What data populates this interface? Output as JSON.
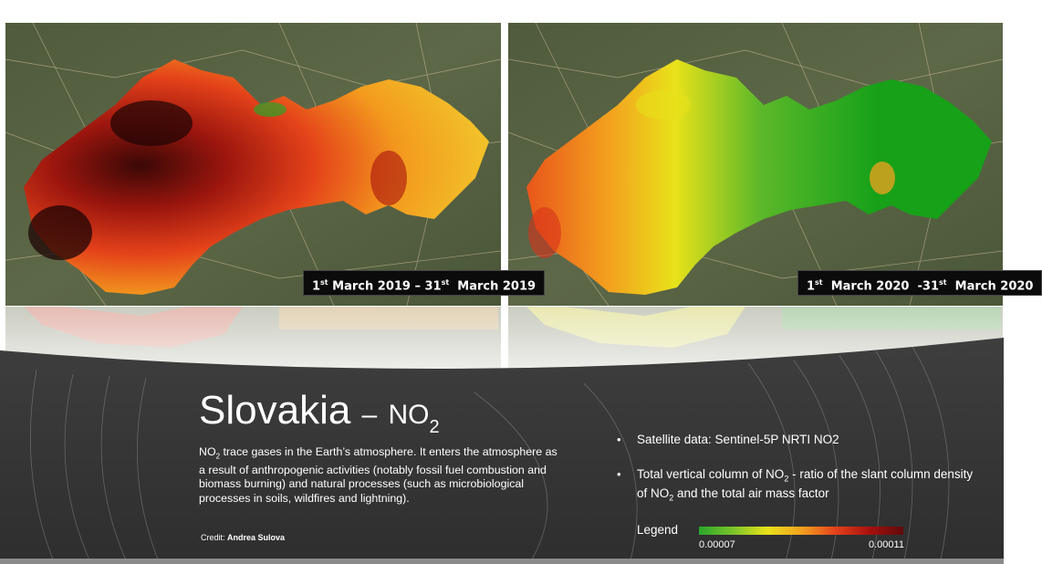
{
  "title": {
    "main": "Slovakia",
    "dash": "–",
    "chem": "NO",
    "chem_sub": "2"
  },
  "maps": [
    {
      "label_pre": "1",
      "label_sup1": "st",
      "label_mid": " March 2019 – 31",
      "label_sup2": "st",
      "label_post": "  March 2019",
      "palette": "high"
    },
    {
      "label_pre": "1",
      "label_sup1": "st",
      "label_mid": "  March 2020  -31",
      "label_sup2": "st",
      "label_post": "  March 2020",
      "palette": "low"
    }
  ],
  "description": {
    "part1": "NO",
    "sub": "2",
    "part2": " trace gases in the Earth’s atmosphere. It enters the atmosphere as a result of anthropogenic activities (notably fossil fuel combustion and biomass burning) and natural processes (such as microbiological processes in soils, wildfires and lightning)."
  },
  "credit": {
    "label": "Credit: ",
    "name": "Andrea Sulova"
  },
  "bullets": {
    "satellite": "Satellite data: Sentinel-5P NRTI NO2",
    "column_pre": "Total vertical column of NO",
    "column_sub1": "2",
    "column_mid": " - ratio of the slant column density of NO",
    "column_sub2": "2",
    "column_post": " and the total air mass factor"
  },
  "legend": {
    "title": "Legend",
    "min": "0.00007",
    "max": "0.00011",
    "colors": [
      "#2aa52a",
      "#e8e21a",
      "#e4421a",
      "#600a0a"
    ]
  }
}
